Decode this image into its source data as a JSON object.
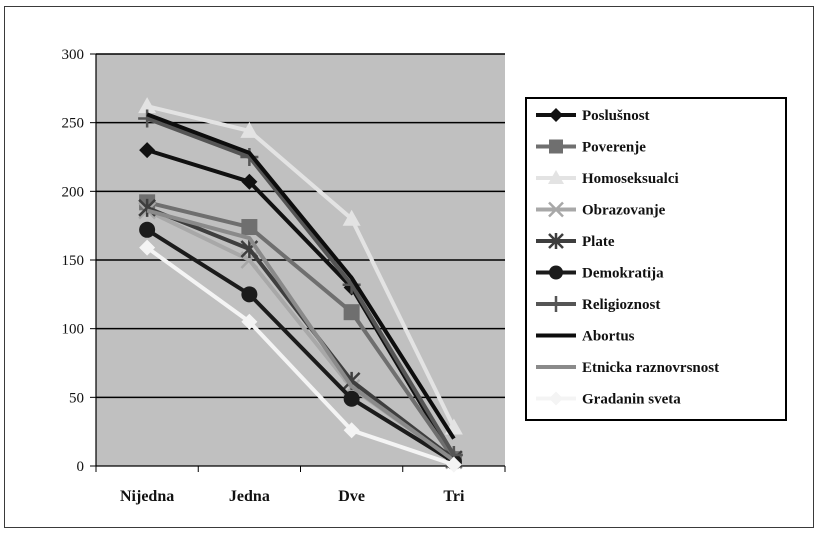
{
  "chart_data": {
    "type": "line",
    "categories": [
      "Nijedna",
      "Jedna",
      "Dve",
      "Tri"
    ],
    "ylim": [
      0,
      300
    ],
    "yticks": [
      0,
      50,
      100,
      150,
      200,
      250,
      300
    ],
    "grid": true,
    "legend_position": "right",
    "series": [
      {
        "name": "Poslušnost",
        "values": [
          230,
          207,
          130,
          5
        ],
        "color": "#111111",
        "marker": "diamond"
      },
      {
        "name": "Poverenje",
        "values": [
          192,
          174,
          112,
          5
        ],
        "color": "#6f6f6f",
        "marker": "square"
      },
      {
        "name": "Homoseksualci",
        "values": [
          262,
          244,
          180,
          28
        ],
        "color": "#e3e3e3",
        "marker": "triangle"
      },
      {
        "name": "Obrazovanje",
        "values": [
          186,
          150,
          57,
          4
        ],
        "color": "#a8a8a8",
        "marker": "x"
      },
      {
        "name": "Plate",
        "values": [
          188,
          158,
          62,
          5
        ],
        "color": "#3e3e3e",
        "marker": "star"
      },
      {
        "name": "Demokratija",
        "values": [
          172,
          125,
          49,
          3
        ],
        "color": "#1b1b1b",
        "marker": "circle"
      },
      {
        "name": "Religioznost",
        "values": [
          253,
          225,
          132,
          8
        ],
        "color": "#555555",
        "marker": "plus"
      },
      {
        "name": "Abortus",
        "values": [
          256,
          228,
          137,
          20
        ],
        "color": "#0d0d0d",
        "marker": "none"
      },
      {
        "name": "Etnicka raznovrsnost",
        "values": [
          186,
          166,
          58,
          4
        ],
        "color": "#8a8a8a",
        "marker": "none"
      },
      {
        "name": "Gradanin sveta",
        "values": [
          159,
          105,
          26,
          1
        ],
        "color": "#f4f4f4",
        "marker": "diamond"
      }
    ]
  }
}
